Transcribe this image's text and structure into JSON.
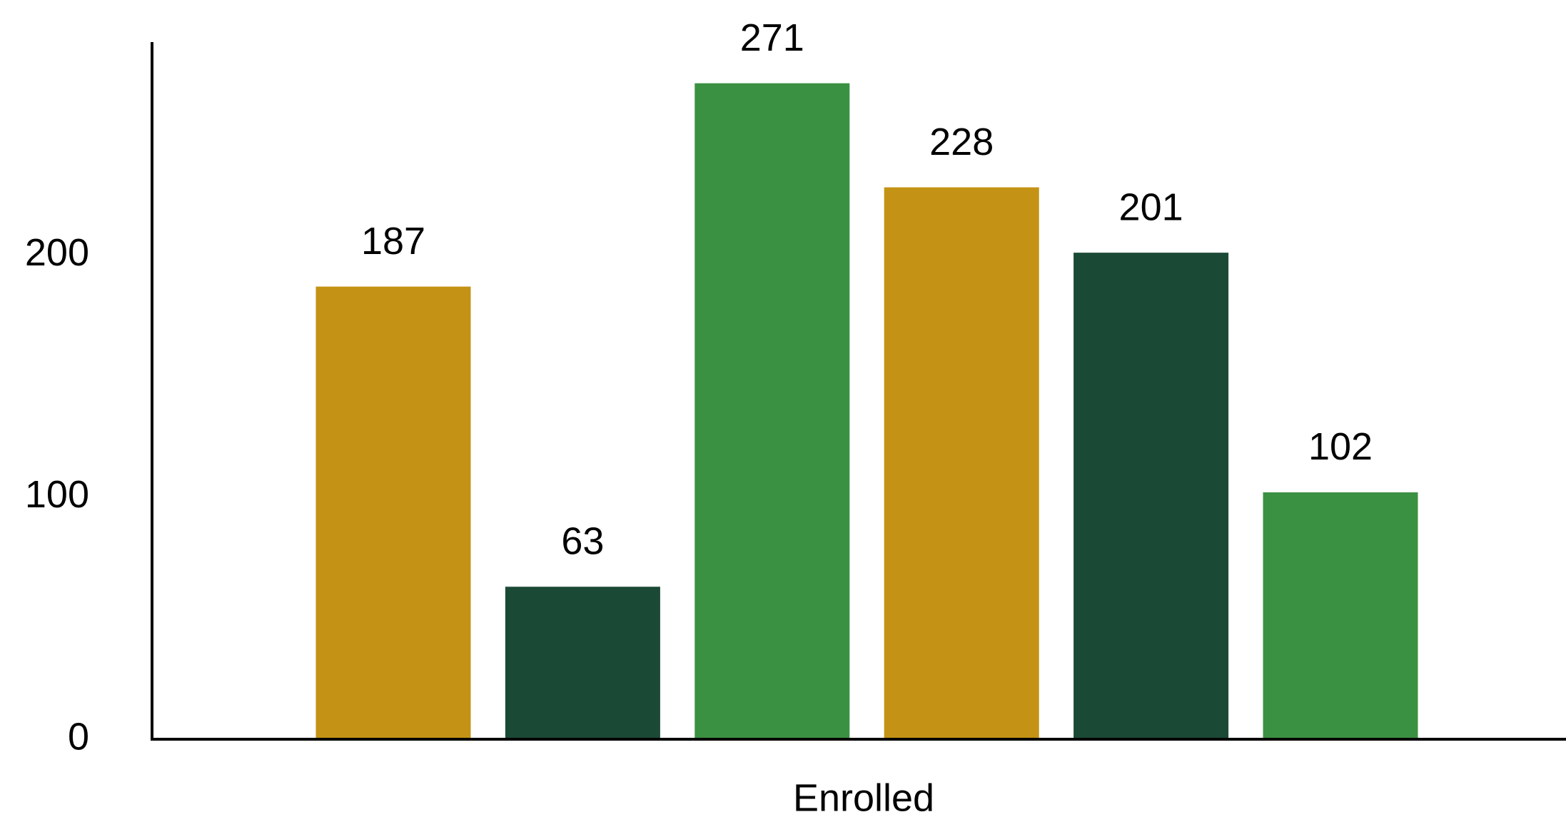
{
  "chart_data": {
    "type": "bar",
    "xlabel": "Enrolled",
    "categories": [
      null,
      null,
      null,
      null,
      null,
      null
    ],
    "values": [
      187,
      63,
      271,
      228,
      201,
      102
    ],
    "colors": [
      "#c49214",
      "#1a4935",
      "#3b9142",
      "#c49214",
      "#1a4935",
      "#3b9142"
    ],
    "ylim": [
      0,
      288
    ],
    "yticks": [
      0,
      100,
      200
    ],
    "grid": false
  }
}
